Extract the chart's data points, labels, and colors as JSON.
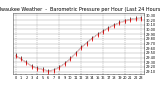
{
  "title": "Milwaukee Weather  -  Barometric Pressure per Hour (Last 24 Hours)",
  "bg_color": "#ffffff",
  "plot_bg": "#ffffff",
  "grid_color": "#888888",
  "hours": [
    0,
    1,
    2,
    3,
    4,
    5,
    6,
    7,
    8,
    9,
    10,
    11,
    12,
    13,
    14,
    15,
    16,
    17,
    18,
    19,
    20,
    21,
    22,
    23
  ],
  "pressure": [
    29.45,
    29.38,
    29.3,
    29.22,
    29.18,
    29.15,
    29.12,
    29.14,
    29.2,
    29.28,
    29.38,
    29.5,
    29.62,
    29.72,
    29.82,
    29.9,
    29.97,
    30.04,
    30.1,
    30.15,
    30.19,
    30.22,
    30.24,
    30.25
  ],
  "pressure2": [
    29.43,
    29.36,
    29.28,
    29.2,
    29.16,
    29.13,
    29.1,
    29.12,
    29.18,
    29.26,
    29.36,
    29.48,
    29.6,
    29.7,
    29.8,
    29.88,
    29.95,
    30.02,
    30.08,
    30.13,
    30.17,
    30.2,
    30.22,
    30.23
  ],
  "ylim": [
    29.05,
    30.35
  ],
  "ytick_labels": [
    "29.10",
    "29.20",
    "29.30",
    "29.40",
    "29.50",
    "29.60",
    "29.70",
    "29.80",
    "29.90",
    "30.00",
    "30.10",
    "30.20",
    "30.30"
  ],
  "ytick_vals": [
    29.1,
    29.2,
    29.3,
    29.4,
    29.5,
    29.6,
    29.7,
    29.8,
    29.9,
    30.0,
    30.1,
    30.2,
    30.3
  ],
  "line1_color": "#111111",
  "line2_color": "#ff0000",
  "title_fontsize": 3.5,
  "tick_fontsize": 2.5,
  "marker_size": 1.0,
  "linewidth": 0.0,
  "grid_linewidth": 0.35,
  "vgrid_positions": [
    0,
    4,
    8,
    12,
    16,
    20,
    23
  ]
}
